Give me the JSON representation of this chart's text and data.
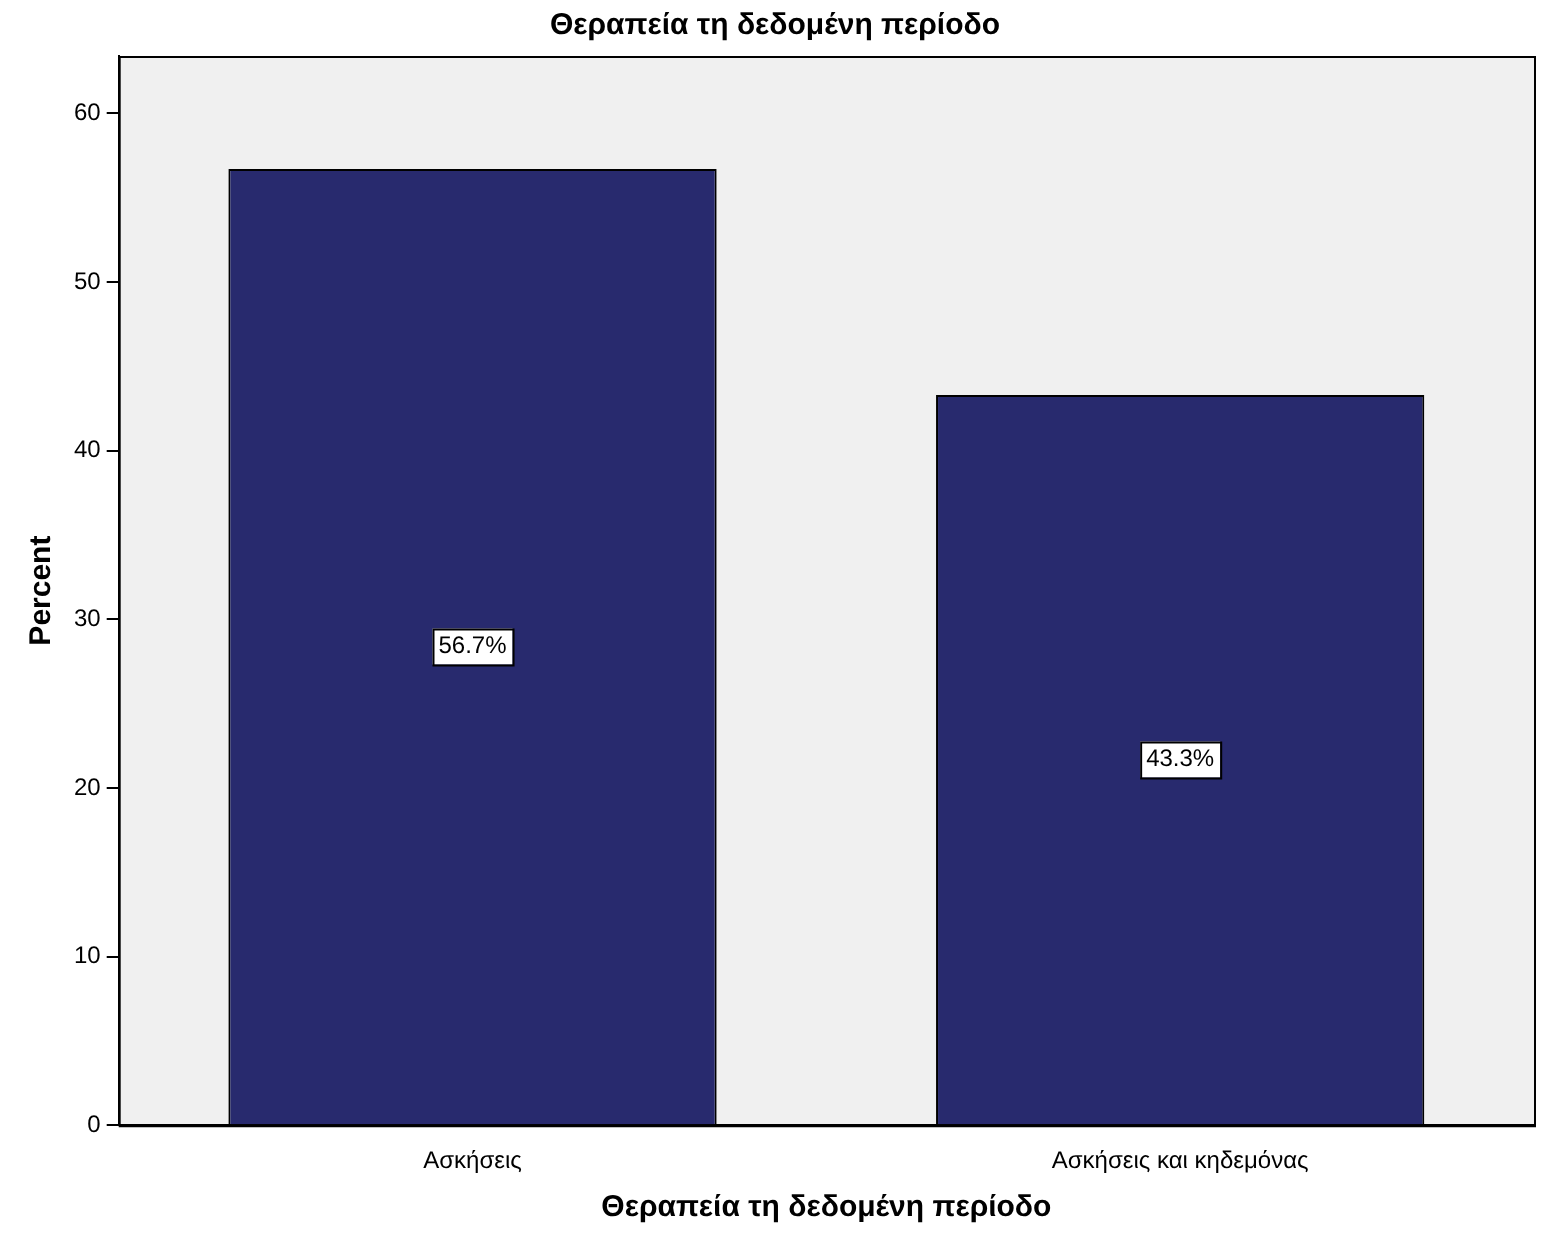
{
  "chart_data": {
    "type": "bar",
    "title": "Θεραπεία τη δεδομένη περίοδο",
    "xlabel": "Θεραπεία τη δεδομένη περίοδο",
    "ylabel": "Percent",
    "categories": [
      "Ασκήσεις",
      "Ασκήσεις και κηδεμόνας"
    ],
    "values": [
      56.7,
      43.3
    ],
    "color": "#282a6e",
    "value_labels": [
      "56.7%",
      "43.3%"
    ],
    "ylim": [
      0,
      63.4
    ],
    "yticks": [
      0,
      10,
      20,
      30,
      40,
      50,
      60
    ],
    "grid": false,
    "legend": false
  }
}
